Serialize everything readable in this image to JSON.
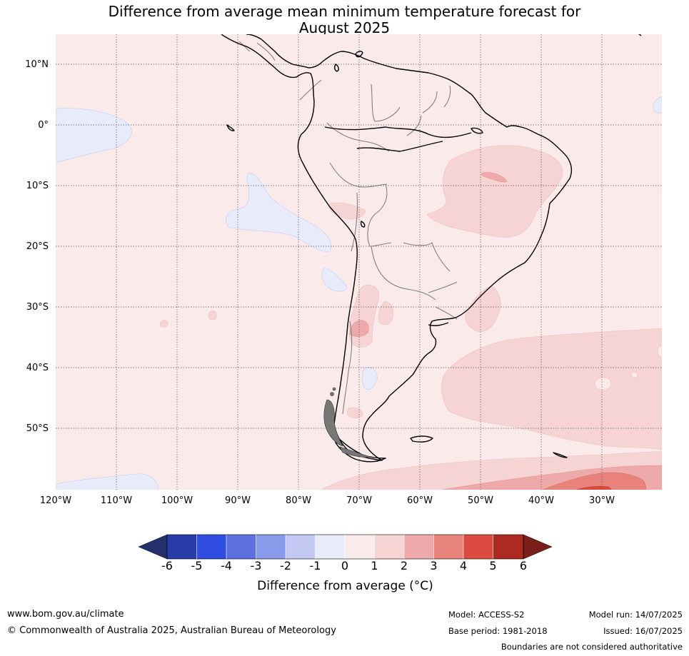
{
  "title": {
    "line1": "Difference from average mean minimum temperature forecast for",
    "line2": "August 2025"
  },
  "map": {
    "lat_ticks": [
      "10°N",
      "0°",
      "10°S",
      "20°S",
      "30°S",
      "40°S",
      "50°S"
    ],
    "lon_ticks": [
      "120°W",
      "110°W",
      "100°W",
      "90°W",
      "80°W",
      "70°W",
      "60°W",
      "50°W",
      "40°W",
      "30°W"
    ],
    "extent": {
      "lon_min": -120,
      "lon_max": -20,
      "lat_min": -60,
      "lat_max": 15
    },
    "gridlines": "dotted",
    "background_category": "0 to 1"
  },
  "colorbar": {
    "labels": [
      "-6",
      "-5",
      "-4",
      "-3",
      "-2",
      "-1",
      "0",
      "1",
      "2",
      "3",
      "4",
      "5",
      "6"
    ],
    "colors": [
      "#24306e",
      "#283ca8",
      "#2f4ee0",
      "#5c70e0",
      "#8a9aeb",
      "#c3c9f3",
      "#e8ecfa",
      "#fbeaea",
      "#f6d4d4",
      "#eeaaaa",
      "#e8837c",
      "#dc4b3f",
      "#ad2a22",
      "#7a1f1a"
    ],
    "title": "Difference from average (°C)"
  },
  "footer": {
    "website": "www.bom.gov.au/climate",
    "copyright": "© Commonwealth of Australia 2025, Australian Bureau of Meteorology",
    "model": "Model: ACCESS-S2",
    "base_period": "Base period: 1981-2018",
    "model_run": "Model run: 14/07/2025",
    "issued": "Issued: 16/07/2025",
    "disclaimer": "Boundaries are not considered authoritative"
  }
}
